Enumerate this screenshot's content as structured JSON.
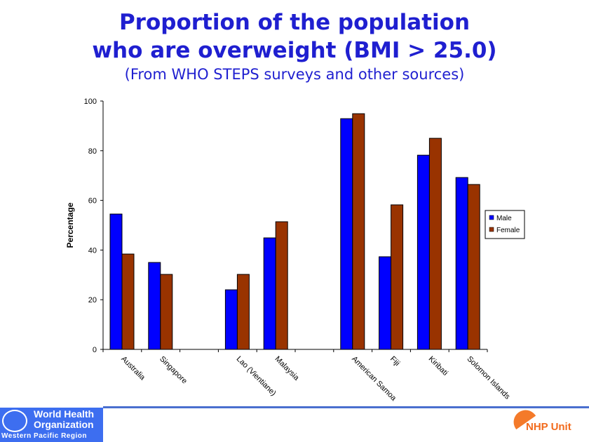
{
  "title_line1": "Proportion of the population",
  "title_line2": "who are overweight (BMI > 25.0)",
  "subtitle": "(From WHO STEPS surveys and other sources)",
  "chart_data": {
    "type": "bar",
    "title": "Proportion of the population who are overweight (BMI > 25.0)",
    "ylabel": "Percentage",
    "xlabel": "",
    "ylim": [
      0,
      100
    ],
    "yticks": [
      "0",
      "20",
      "40",
      "60",
      "80",
      "100"
    ],
    "categories": [
      "Australia",
      "Singapore",
      "",
      "Lao (Vientiane)",
      "Malaysia",
      "",
      "American Samoa",
      "Fiji",
      "Kiribati",
      "Solomon Islands"
    ],
    "series": [
      {
        "name": "Male",
        "color": "#0000ff",
        "values": [
          54.5,
          35,
          null,
          24,
          44.9,
          null,
          92.9,
          37.3,
          78.2,
          69.2
        ]
      },
      {
        "name": "Female",
        "color": "#993300",
        "values": [
          38.4,
          30.2,
          null,
          30.2,
          51.4,
          null,
          94.9,
          58.2,
          85,
          66.4
        ]
      }
    ],
    "legend_position": "right",
    "grid": false
  },
  "footer": {
    "org_line1": "World Health",
    "org_line2": "Organization",
    "region": "Western Pacific Region",
    "unit": "NHP Unit"
  }
}
